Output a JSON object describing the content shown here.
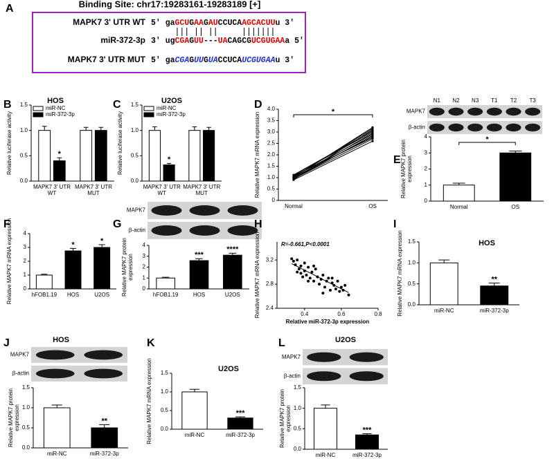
{
  "panel_a": {
    "label": "A",
    "title": "Binding Site: chr17:19283161-19283189 [+]",
    "rows": [
      {
        "name": "MAPK7 3' UTR WT",
        "segments": [
          {
            "text": "5' ga",
            "color": "#000000"
          },
          {
            "text": "GCU",
            "color": "#e00000"
          },
          {
            "text": "G",
            "color": "#000000"
          },
          {
            "text": "AA",
            "color": "#e00000"
          },
          {
            "text": "G",
            "color": "#000000"
          },
          {
            "text": "AU",
            "color": "#e00000"
          },
          {
            "text": "CCUCA",
            "color": "#000000"
          },
          {
            "text": "AGCACUU",
            "color": "#e00000"
          },
          {
            "text": "u 3'",
            "color": "#000000"
          }
        ]
      },
      {
        "name": "miR-372-3p",
        "segments": [
          {
            "text": "3' ug",
            "color": "#000000"
          },
          {
            "text": "CGA",
            "color": "#e00000"
          },
          {
            "text": "G",
            "color": "#000000"
          },
          {
            "text": "UU",
            "color": "#e00000"
          },
          {
            "text": "---",
            "color": "#000000"
          },
          {
            "text": "UA",
            "color": "#e00000"
          },
          {
            "text": "CAGCG",
            "color": "#000000"
          },
          {
            "text": "UCGUGAA",
            "color": "#e00000"
          },
          {
            "text": "a 5'",
            "color": "#000000"
          }
        ]
      },
      {
        "name": "MAPK7 3' UTR MUT",
        "segments": [
          {
            "text": "5' ga",
            "color": "#000000"
          },
          {
            "text": "CGA",
            "color": "#1f2fd0",
            "italic": true
          },
          {
            "text": "G",
            "color": "#000000"
          },
          {
            "text": "UU",
            "color": "#1f2fd0",
            "italic": true
          },
          {
            "text": "G",
            "color": "#000000"
          },
          {
            "text": "UA",
            "color": "#1f2fd0",
            "italic": true
          },
          {
            "text": "CCUCA",
            "color": "#000000"
          },
          {
            "text": "UCGUGAA",
            "color": "#1f2fd0",
            "italic": true
          },
          {
            "text": "u 3'",
            "color": "#000000"
          }
        ]
      }
    ]
  },
  "chart_data": [
    {
      "label": "B",
      "type": "grouped_bar",
      "title": "HOS",
      "y_label": [
        "Relative luciferase activity"
      ],
      "categories": [
        [
          "MAPK7 3' UTR",
          "WT"
        ],
        [
          "MAPK7 3' UTR",
          "MUT"
        ]
      ],
      "series": [
        {
          "name": "miR-NC",
          "color": "#ffffff",
          "values": [
            1,
            1
          ],
          "errors": [
            0.08,
            0.06
          ],
          "significance": [
            null,
            null
          ]
        },
        {
          "name": "miR-372-3p",
          "color": "#000000",
          "values": [
            0.4,
            1
          ],
          "errors": [
            0.06,
            0.06
          ],
          "significance": [
            "*",
            null
          ]
        }
      ],
      "ylim": [
        0,
        1.5
      ],
      "yticks": [
        {
          "value": 0,
          "label": "0.0"
        },
        0.5,
        {
          "value": 1,
          "label": "1.0"
        },
        1.5
      ]
    },
    {
      "label": "C",
      "type": "grouped_bar",
      "title": "U2OS",
      "y_label": [
        "Relative luciferase activity"
      ],
      "categories": [
        [
          "MAPK7 3' UTR",
          "WT"
        ],
        [
          "MAPK7 3' UTR",
          "MUT"
        ]
      ],
      "series": [
        {
          "name": "miR-NC",
          "color": "#ffffff",
          "values": [
            1,
            1
          ],
          "errors": [
            0.07,
            0.07
          ],
          "significance": [
            null,
            null
          ]
        },
        {
          "name": "miR-372-3p",
          "color": "#000000",
          "values": [
            0.32,
            1
          ],
          "errors": [
            0.03,
            0.06
          ],
          "significance": [
            "*",
            null
          ]
        }
      ],
      "ylim": [
        0,
        1.5
      ],
      "yticks": [
        {
          "value": 0,
          "label": "0.0"
        },
        0.5,
        {
          "value": 1,
          "label": "1.0"
        },
        1.5
      ]
    },
    {
      "label": "D",
      "type": "line",
      "y_label": [
        "Relative MAPK7 mRNA expression"
      ],
      "x": [
        "Normal",
        "OS"
      ],
      "color": "#000000",
      "significance": "*",
      "series": [
        {
          "values": [
            0.9,
            2.6
          ]
        },
        {
          "values": [
            0.95,
            2.7
          ]
        },
        {
          "values": [
            1,
            2.8
          ]
        },
        {
          "values": [
            1.05,
            2.9
          ]
        },
        {
          "values": [
            1.1,
            3
          ]
        },
        {
          "values": [
            0.92,
            3.1
          ]
        },
        {
          "values": [
            1,
            3.2
          ]
        },
        {
          "values": [
            1.08,
            2.75
          ]
        },
        {
          "values": [
            0.98,
            2.95
          ]
        },
        {
          "values": [
            1.12,
            3.05
          ]
        },
        {
          "values": [
            0.94,
            2.85
          ]
        },
        {
          "values": [
            1.02,
            3.15
          ]
        }
      ],
      "ylim": [
        0,
        4
      ],
      "yticks": [
        0,
        0.5,
        {
          "value": 1,
          "label": "1.0"
        },
        1.5,
        {
          "value": 2,
          "label": "2.0"
        },
        2.5,
        {
          "value": 3,
          "label": "3.0"
        },
        3.5,
        {
          "value": 4,
          "label": "4.0"
        }
      ]
    },
    {
      "label": "E",
      "type": "bar",
      "y_label": [
        "Relative MAPK7 protein",
        "expression"
      ],
      "categories": [
        "Normal",
        "OS"
      ],
      "values": [
        1,
        3
      ],
      "errors": [
        0.12,
        0.12
      ],
      "colors": [
        "#ffffff",
        "#000000"
      ],
      "significance": "*",
      "ylim": [
        0,
        4
      ],
      "yticks": [
        0,
        1,
        2,
        3,
        4
      ],
      "blot": {
        "lanes": [
          "N1",
          "N2",
          "N3",
          "T1",
          "T2",
          "T3"
        ],
        "rows": [
          "MAPK7",
          "β-actin"
        ]
      }
    },
    {
      "label": "F",
      "type": "bar",
      "y_label": [
        "Relative MAPK7 mRNA expression"
      ],
      "categories": [
        "hFOB1.19",
        "HOS",
        "U2OS"
      ],
      "values": [
        1,
        2.75,
        3
      ],
      "errors": [
        0.06,
        0.18,
        0.2
      ],
      "colors": [
        "#ffffff",
        "#000000",
        "#000000"
      ],
      "significance": [
        null,
        "*",
        "*"
      ],
      "ylim": [
        0,
        4
      ],
      "yticks": [
        0,
        1,
        2,
        3,
        4
      ]
    },
    {
      "label": "G",
      "type": "bar",
      "y_label": [
        "Relative MAPK7 protein",
        "expression"
      ],
      "categories": [
        "hFOB1.19",
        "HOS",
        "U2OS"
      ],
      "values": [
        1,
        2.6,
        3.1
      ],
      "errors": [
        0.07,
        0.18,
        0.18
      ],
      "colors": [
        "#ffffff",
        "#000000",
        "#000000"
      ],
      "significance": [
        null,
        "***",
        "****"
      ],
      "ylim": [
        0,
        4
      ],
      "yticks": [
        0,
        1,
        2,
        3,
        4
      ],
      "blot": {
        "rows": [
          "MAPK7",
          "β-actin"
        ]
      }
    },
    {
      "label": "H",
      "type": "scatter",
      "annotation": "R=-0.661,P<0.0001",
      "x_label": "Relative miR-372-3p expression",
      "y_label": [
        "Relative MAPK7 mRNA expression"
      ],
      "x": [
        0.33,
        0.34,
        0.35,
        0.36,
        0.37,
        0.38,
        0.38,
        0.4,
        0.4,
        0.41,
        0.42,
        0.43,
        0.44,
        0.45,
        0.46,
        0.47,
        0.48,
        0.49,
        0.5,
        0.51,
        0.52,
        0.53,
        0.54,
        0.55,
        0.56,
        0.57,
        0.58,
        0.59,
        0.6,
        0.61,
        0.62,
        0.64,
        0.42,
        0.45,
        0.5,
        0.55,
        0.36,
        0.39
      ],
      "values": [
        3.22,
        3.18,
        3.12,
        3.2,
        3.05,
        3.1,
        2.98,
        3.15,
        3.02,
        2.95,
        3.08,
        2.9,
        3,
        2.85,
        3.05,
        2.92,
        2.8,
        2.88,
        2.95,
        2.75,
        2.85,
        2.9,
        2.7,
        2.82,
        2.78,
        2.72,
        2.85,
        2.68,
        2.75,
        2.7,
        2.78,
        2.62,
        2.85,
        3.1,
        2.65,
        2.9,
        3,
        2.92
      ],
      "fit": {
        "x": [
          0.33,
          0.64
        ],
        "y": [
          3.14,
          2.66
        ]
      },
      "xlim": [
        0.25,
        0.8
      ],
      "xticks": [
        0.4,
        0.6,
        0.8
      ],
      "ylim": [
        2.4,
        3.5
      ],
      "yticks": [
        2.4,
        2.8,
        3.2
      ]
    },
    {
      "label": "I",
      "type": "bar",
      "title": "HOS",
      "y_label": [
        "Relative MAPK7 mRNA expression"
      ],
      "categories": [
        "miR-NC",
        "miR-372-3p"
      ],
      "values": [
        1,
        0.45
      ],
      "errors": [
        0.07,
        0.07
      ],
      "colors": [
        "#ffffff",
        "#000000"
      ],
      "significance": [
        null,
        "**"
      ],
      "ylim": [
        0,
        1.5
      ],
      "yticks": [
        {
          "value": 0,
          "label": "0.0"
        },
        0.5,
        {
          "value": 1,
          "label": "1.0"
        },
        1.5
      ]
    },
    {
      "label": "J",
      "type": "bar",
      "title": "HOS",
      "y_label": [
        "Relative MAPK7 protein",
        "expression"
      ],
      "categories": [
        "miR-NC",
        "miR-372-3p"
      ],
      "values": [
        1,
        0.5
      ],
      "errors": [
        0.07,
        0.08
      ],
      "colors": [
        "#ffffff",
        "#000000"
      ],
      "significance": [
        null,
        "**"
      ],
      "ylim": [
        0,
        1.5
      ],
      "yticks": [
        {
          "value": 0,
          "label": "0.0"
        },
        0.5,
        {
          "value": 1,
          "label": "1.0"
        },
        1.5
      ],
      "blot": {
        "rows": [
          "MAPK7",
          "β-actin"
        ]
      }
    },
    {
      "label": "K",
      "type": "bar",
      "title": "U2OS",
      "y_label": [
        "Relative MAPK7 mRNA expression"
      ],
      "categories": [
        "miR-NC",
        "miR-372-3p"
      ],
      "values": [
        1,
        0.3
      ],
      "errors": [
        0.07,
        0.03
      ],
      "colors": [
        "#ffffff",
        "#000000"
      ],
      "significance": [
        null,
        "***"
      ],
      "ylim": [
        0,
        1.5
      ],
      "yticks": [
        {
          "value": 0,
          "label": "0.0"
        },
        0.5,
        {
          "value": 1,
          "label": "1.0"
        },
        1.5
      ]
    },
    {
      "label": "L",
      "type": "bar",
      "title": "U2OS",
      "y_label": [
        "Relative MAPK7 protein",
        "expression"
      ],
      "categories": [
        "miR-NC",
        "miR-372-3p"
      ],
      "values": [
        1,
        0.35
      ],
      "errors": [
        0.08,
        0.03
      ],
      "colors": [
        "#ffffff",
        "#000000"
      ],
      "significance": [
        null,
        "***"
      ],
      "ylim": [
        0,
        1.5
      ],
      "yticks": [
        {
          "value": 0,
          "label": "0.0"
        },
        0.5,
        {
          "value": 1,
          "label": "1.0"
        },
        1.5
      ],
      "blot": {
        "rows": [
          "MAPK7",
          "β-actin"
        ]
      }
    }
  ]
}
